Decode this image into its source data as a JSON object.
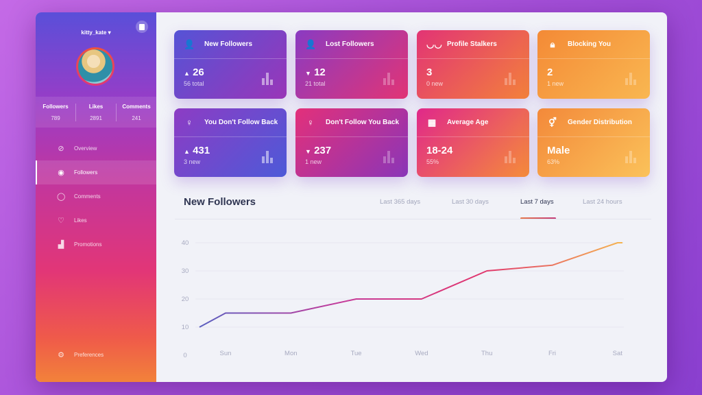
{
  "sidebar": {
    "username": "kitty_kate",
    "stats": [
      {
        "label": "Followers",
        "value": "789"
      },
      {
        "label": "Likes",
        "value": "2891"
      },
      {
        "label": "Comments",
        "value": "241"
      }
    ],
    "items": [
      {
        "label": "Overview",
        "icon": "compass-icon"
      },
      {
        "label": "Followers",
        "icon": "user-circle-icon",
        "active": true
      },
      {
        "label": "Comments",
        "icon": "chat-bubble-icon"
      },
      {
        "label": "Likes",
        "icon": "heart-icon"
      },
      {
        "label": "Promotions",
        "icon": "bar-chart-icon"
      }
    ],
    "preferences": "Preferences"
  },
  "cards": [
    {
      "title": "New Followers",
      "icon": "user-plus-icon",
      "trend": "▲",
      "value": "26",
      "sub": "56 total",
      "gradient": [
        "#5553d6",
        "#9a36b8"
      ]
    },
    {
      "title": "Lost Followers",
      "icon": "user-minus-icon",
      "trend": "▼",
      "value": "12",
      "sub": "21 total",
      "gradient": [
        "#8a3bc2",
        "#e23475"
      ]
    },
    {
      "title": "Profile Stalkers",
      "icon": "glasses-mustache-icon",
      "trend": "",
      "value": "3",
      "sub": "0 new",
      "gradient": [
        "#e23475",
        "#f3813b"
      ]
    },
    {
      "title": "Blocking You",
      "icon": "lock-icon",
      "trend": "",
      "value": "2",
      "sub": "1 new",
      "gradient": [
        "#f48a36",
        "#f9b751"
      ]
    },
    {
      "title": "You Don't Follow Back",
      "icon": "user-follow-plus-icon",
      "trend": "▲",
      "value": "431",
      "sub": "3 new",
      "gradient": [
        "#8d3cc4",
        "#4d5ad8"
      ]
    },
    {
      "title": "Don't Follow You Back",
      "icon": "user-follow-minus-icon",
      "trend": "▼",
      "value": "237",
      "sub": "1 new",
      "gradient": [
        "#e3307a",
        "#8a36b8"
      ]
    },
    {
      "title": "Average Age",
      "icon": "calendar-icon",
      "trend": "",
      "value": "18-24",
      "sub": "55%",
      "gradient": [
        "#e0288a",
        "#f58c3a"
      ]
    },
    {
      "title": "Gender Distribution",
      "icon": "gender-icon",
      "trend": "",
      "value": "Male",
      "sub": "63%",
      "gradient": [
        "#f3893a",
        "#fbc25a"
      ]
    }
  ],
  "main": {
    "title": "New Followers",
    "tabs": [
      {
        "label": "Last 365 days"
      },
      {
        "label": "Last 30 days"
      },
      {
        "label": "Last 7 days",
        "active": true
      },
      {
        "label": "Last 24 hours"
      }
    ]
  },
  "chart_data": {
    "type": "line",
    "categories": [
      "Sun",
      "Mon",
      "Tue",
      "Wed",
      "Thu",
      "Fri",
      "Sat"
    ],
    "initial_value": 10,
    "values": [
      15,
      15,
      20,
      20,
      30,
      32,
      40
    ],
    "yticks": [
      0,
      10,
      20,
      30,
      40
    ],
    "ylim": [
      0,
      40
    ],
    "grid": true,
    "line_gradient": [
      "#5a5fc0",
      "#c43a9a",
      "#e0356e",
      "#f5b550"
    ]
  }
}
